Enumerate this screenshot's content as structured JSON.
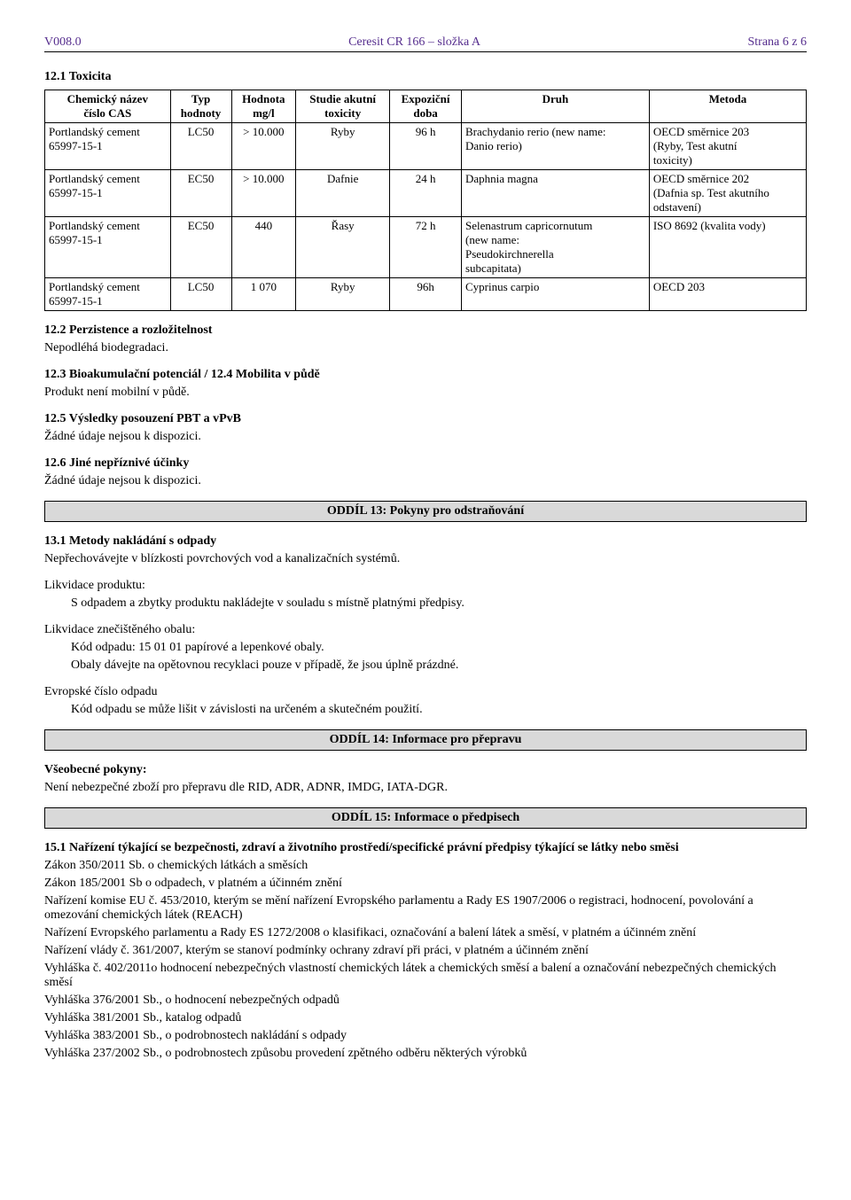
{
  "header": {
    "left": "V008.0",
    "center": "Ceresit CR 166 – složka A",
    "right": "Strana 6 z 6"
  },
  "s12": {
    "title": "12.1 Toxicita",
    "columns": [
      "Chemický název\nčíslo CAS",
      "Typ\nhodnoty",
      "Hodnota\nmg/l",
      "Studie akutní\ntoxicity",
      "Expoziční\ndoba",
      "Druh",
      "Metoda"
    ],
    "rows": [
      [
        "Portlandský cement\n65997-15-1",
        "LC50",
        "> 10.000",
        "Ryby",
        "96 h",
        "Brachydanio rerio (new name:\nDanio rerio)",
        "OECD směrnice 203\n(Ryby, Test akutní\ntoxicity)"
      ],
      [
        "Portlandský cement\n65997-15-1",
        "EC50",
        "> 10.000",
        "Dafnie",
        "24 h",
        "Daphnia magna",
        "OECD směrnice 202\n(Dafnia sp. Test akutního\nodstavení)"
      ],
      [
        "Portlandský cement\n65997-15-1",
        "EC50",
        "440",
        "Řasy",
        "72 h",
        "Selenastrum capricornutum\n(new name:\nPseudokirchnerella\nsubcapitata)",
        "ISO 8692 (kvalita vody)"
      ],
      [
        "Portlandský cement\n65997-15-1",
        "LC50",
        "1 070",
        "Ryby",
        "96h",
        "Cyprinus carpio",
        "OECD 203"
      ]
    ],
    "s12_2_head": "12.2 Perzistence a rozložitelnost",
    "s12_2_body": "Nepodléhá biodegradaci.",
    "s12_3_head": "12.3 Bioakumulační potenciál / 12.4 Mobilita v půdě",
    "s12_3_body": "Produkt není mobilní v půdě.",
    "s12_5_head": "12.5 Výsledky posouzení PBT a vPvB",
    "s12_5_body": "Žádné údaje nejsou k dispozici.",
    "s12_6_head": "12.6 Jiné nepříznivé účinky",
    "s12_6_body": "Žádné údaje nejsou k dispozici."
  },
  "s13": {
    "bar": "ODDÍL 13: Pokyny pro odstraňování",
    "h1": "13.1 Metody nakládání s odpady",
    "p1": "Nepřechovávejte v blízkosti povrchových vod a kanalizačních systémů.",
    "h2": "Likvidace produktu:",
    "p2": "S odpadem a zbytky produktu nakládejte v souladu s místně platnými předpisy.",
    "h3": "Likvidace znečištěného obalu:",
    "p3a": "Kód odpadu: 15 01 01  papírové a lepenkové obaly.",
    "p3b": "Obaly dávejte na opětovnou recyklaci  pouze v případě, že jsou úplně prázdné.",
    "h4": "Evropské číslo odpadu",
    "p4": "Kód odpadu se může lišit v závislosti na určeném a skutečném použití."
  },
  "s14": {
    "bar": "ODDÍL 14: Informace pro přepravu",
    "h1": "Všeobecné pokyny:",
    "p1": "Není nebezpečné zboží pro přepravu dle RID, ADR, ADNR, IMDG, IATA-DGR."
  },
  "s15": {
    "bar": "ODDÍL 15: Informace o předpisech",
    "h1": "15.1 Nařízení týkající se bezpečnosti, zdraví a životního prostředí/specifické právní předpisy týkající se látky nebo směsi",
    "lines": [
      "Zákon 350/2011 Sb. o chemických látkách a směsích",
      "Zákon 185/2001 Sb o odpadech, v platném a účinném znění",
      "Nařízení komise EU č. 453/2010, kterým se mění nařízení Evropského parlamentu a Rady ES 1907/2006 o registraci, hodnocení, povolování a omezování chemických látek (REACH)",
      "Nařízení Evropského parlamentu a Rady ES 1272/2008 o klasifikaci, označování a balení látek a směsí, v platném a účinném znění",
      "Nařízení vlády č. 361/2007, kterým se stanoví podmínky ochrany zdraví při práci, v platném a účinném znění",
      "Vyhláška č. 402/2011o hodnocení nebezpečných vlastností chemických látek a chemických směsí a balení a označování nebezpečných chemických směsí",
      "Vyhláška 376/2001 Sb., o hodnocení nebezpečných odpadů",
      "Vyhláška 381/2001 Sb., katalog odpadů",
      "Vyhláška 383/2001 Sb., o podrobnostech nakládání s odpady",
      "Vyhláška 237/2002 Sb., o podrobnostech způsobu provedení zpětného odběru některých výrobků"
    ]
  }
}
